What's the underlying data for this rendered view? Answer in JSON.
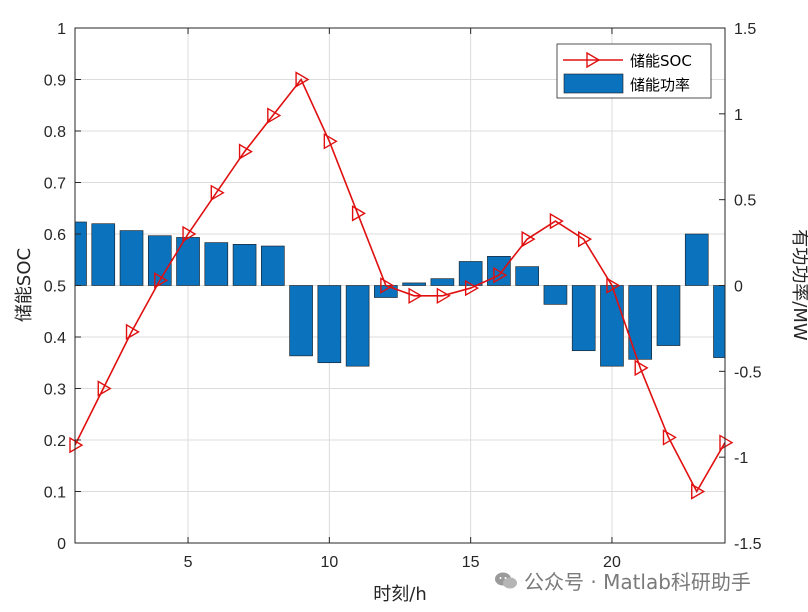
{
  "chart_data": {
    "type": "bar+line",
    "xlabel": "时刻/h",
    "ylabel_left": "储能SOC",
    "ylabel_right": "有功功率/MW",
    "xlim": [
      1,
      24
    ],
    "ylim_left": [
      0,
      1
    ],
    "ylim_right": [
      -1.5,
      1.5
    ],
    "x_ticks": [
      5,
      10,
      15,
      20
    ],
    "y_left_ticks": [
      0,
      0.1,
      0.2,
      0.3,
      0.4,
      0.5,
      0.6,
      0.7,
      0.8,
      0.9,
      1
    ],
    "y_right_ticks": [
      -1.5,
      -1,
      -0.5,
      0,
      0.5,
      1,
      1.5
    ],
    "x_tick_labels": [
      "5",
      "10",
      "15",
      "20"
    ],
    "y_left_tick_labels": [
      "0",
      "0.1",
      "0.2",
      "0.3",
      "0.4",
      "0.5",
      "0.6",
      "0.7",
      "0.8",
      "0.9",
      "1"
    ],
    "y_right_tick_labels": [
      "-1.5",
      "-1",
      "-0.5",
      "0",
      "0.5",
      "1",
      "1.5"
    ],
    "grid": true,
    "legend_position": "top-right",
    "series": [
      {
        "name": "储能SOC",
        "type": "line",
        "axis": "left",
        "color": "#e01010",
        "marker": "right-triangle",
        "x": [
          1,
          2,
          3,
          4,
          5,
          6,
          7,
          8,
          9,
          10,
          11,
          12,
          13,
          14,
          15,
          16,
          17,
          18,
          19,
          20,
          21,
          22,
          23,
          24
        ],
        "values": [
          0.19,
          0.3,
          0.41,
          0.51,
          0.6,
          0.68,
          0.76,
          0.83,
          0.9,
          0.78,
          0.64,
          0.5,
          0.48,
          0.48,
          0.495,
          0.52,
          0.59,
          0.625,
          0.59,
          0.5,
          0.34,
          0.205,
          0.1,
          0.195
        ]
      },
      {
        "name": "储能功率",
        "type": "bar",
        "axis": "right",
        "color": "#0b72bd",
        "x": [
          1,
          2,
          3,
          4,
          5,
          6,
          7,
          8,
          9,
          10,
          11,
          12,
          13,
          14,
          15,
          16,
          17,
          18,
          19,
          20,
          21,
          22,
          23,
          24
        ],
        "values": [
          0.37,
          0.36,
          0.32,
          0.29,
          0.28,
          0.25,
          0.24,
          0.23,
          -0.41,
          -0.45,
          -0.47,
          -0.07,
          0.015,
          0.04,
          0.14,
          0.17,
          0.11,
          -0.11,
          -0.38,
          -0.47,
          -0.43,
          -0.35,
          0.3,
          -0.42
        ]
      }
    ]
  },
  "watermark": {
    "text": "公众号 · Matlab科研助手",
    "icon": "wechat-icon"
  }
}
